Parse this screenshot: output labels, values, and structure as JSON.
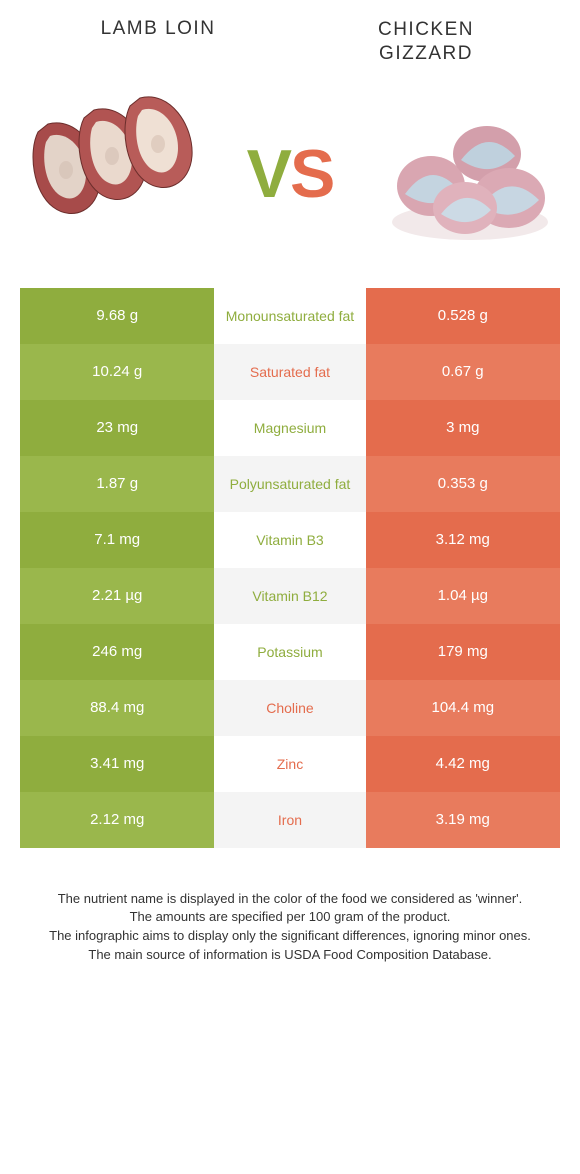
{
  "food_left": {
    "name": "Lamb loin",
    "color": "#8fad3e",
    "color_alt": "#9ab74c"
  },
  "food_right": {
    "name": "Chicken Gizzard",
    "color": "#e46c4d",
    "color_alt": "#e87b5d"
  },
  "vs_label": "VS",
  "rows": [
    {
      "label": "Monounsaturated fat",
      "left": "9.68 g",
      "right": "0.528 g",
      "winner": "left"
    },
    {
      "label": "Saturated fat",
      "left": "10.24 g",
      "right": "0.67 g",
      "winner": "right"
    },
    {
      "label": "Magnesium",
      "left": "23 mg",
      "right": "3 mg",
      "winner": "left"
    },
    {
      "label": "Polyunsaturated fat",
      "left": "1.87 g",
      "right": "0.353 g",
      "winner": "left"
    },
    {
      "label": "Vitamin B3",
      "left": "7.1 mg",
      "right": "3.12 mg",
      "winner": "left"
    },
    {
      "label": "Vitamin B12",
      "left": "2.21 µg",
      "right": "1.04 µg",
      "winner": "left"
    },
    {
      "label": "Potassium",
      "left": "246 mg",
      "right": "179 mg",
      "winner": "left"
    },
    {
      "label": "Choline",
      "left": "88.4 mg",
      "right": "104.4 mg",
      "winner": "right"
    },
    {
      "label": "Zinc",
      "left": "3.41 mg",
      "right": "4.42 mg",
      "winner": "right"
    },
    {
      "label": "Iron",
      "left": "2.12 mg",
      "right": "3.19 mg",
      "winner": "right"
    }
  ],
  "disclaimer": [
    "The nutrient name is displayed in the color of the food we considered as 'winner'.",
    "The amounts are specified per 100 gram of the product.",
    "The infographic aims to display only the significant differences, ignoring minor ones.",
    "The main source of information is USDA Food Composition Database."
  ]
}
